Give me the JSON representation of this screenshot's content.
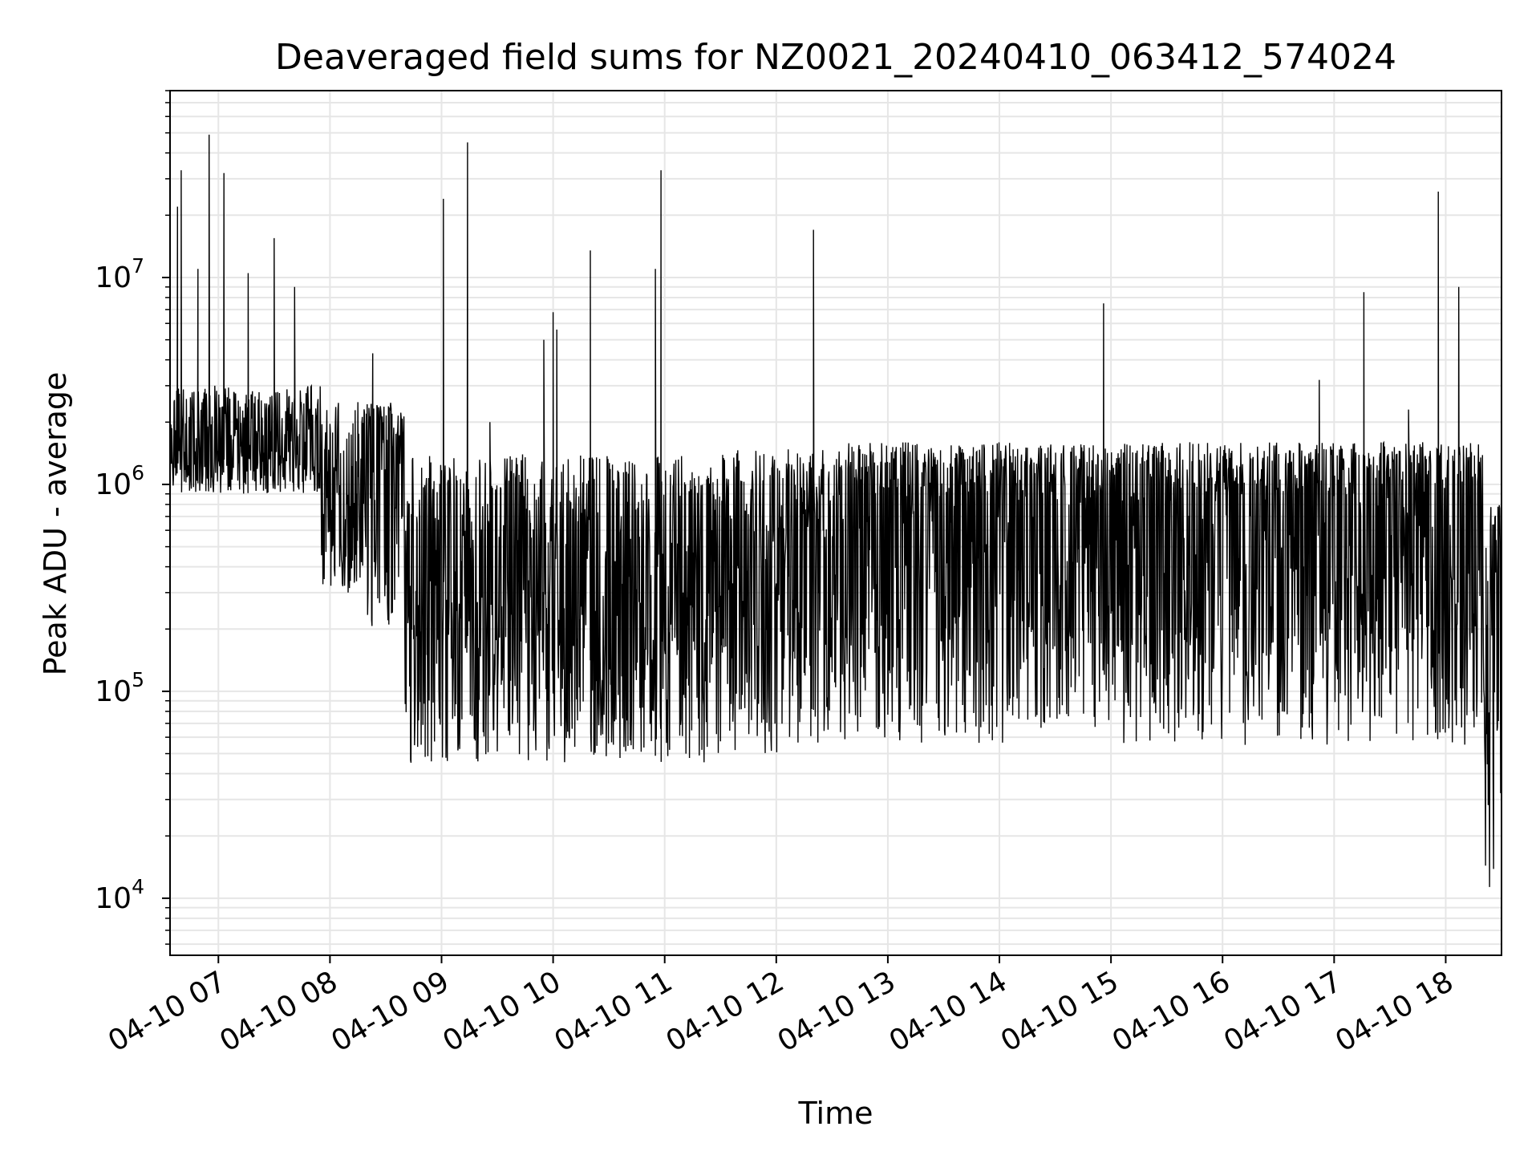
{
  "chart_data": {
    "type": "line",
    "title": "Deaveraged field sums for NZ0021_20240410_063412_574024",
    "xlabel": "Time",
    "ylabel": "Peak ADU - average",
    "yscale": "log",
    "grid": true,
    "legend": "none",
    "xlim": [
      "2024-04-10 06:34",
      "2024-04-10 18:30"
    ],
    "ylim": [
      5300,
      80000000
    ],
    "x_ticks": [
      "04-10 07",
      "04-10 08",
      "04-10 09",
      "04-10 10",
      "04-10 11",
      "04-10 12",
      "04-10 13",
      "04-10 14",
      "04-10 15",
      "04-10 16",
      "04-10 17",
      "04-10 18"
    ],
    "y_ticks": [
      {
        "value": 10000,
        "base": "10",
        "exp": "4"
      },
      {
        "value": 100000,
        "base": "10",
        "exp": "5"
      },
      {
        "value": 1000000,
        "base": "10",
        "exp": "6"
      },
      {
        "value": 10000000,
        "base": "10",
        "exp": "7"
      }
    ],
    "series": [
      {
        "color": "#000000",
        "segments": [
          {
            "start": "2024-04-10 06:34",
            "end": "2024-04-10 07:55",
            "base": 1500000,
            "low": 900000,
            "high": 3000000
          },
          {
            "start": "2024-04-10 07:55",
            "end": "2024-04-10 08:20",
            "base": 1000000,
            "low": 300000,
            "high": 2500000
          },
          {
            "start": "2024-04-10 08:20",
            "end": "2024-04-10 08:40",
            "base": 1500000,
            "low": 200000,
            "high": 2500000
          },
          {
            "start": "2024-04-10 08:40",
            "end": "2024-04-10 11:30",
            "base": 400000,
            "low": 45000,
            "high": 1400000
          },
          {
            "start": "2024-04-10 11:30",
            "end": "2024-04-10 12:30",
            "base": 500000,
            "low": 50000,
            "high": 1500000
          },
          {
            "start": "2024-04-10 12:30",
            "end": "2024-04-10 18:20",
            "base": 800000,
            "low": 55000,
            "high": 1600000
          },
          {
            "start": "2024-04-10 18:20",
            "end": "2024-04-10 18:30",
            "base": 300000,
            "low": 10000,
            "high": 800000
          }
        ],
        "spikes": [
          {
            "t": "2024-04-10 06:38",
            "y": 22000000
          },
          {
            "t": "2024-04-10 06:40",
            "y": 33000000
          },
          {
            "t": "2024-04-10 06:49",
            "y": 11000000
          },
          {
            "t": "2024-04-10 06:55",
            "y": 49000000
          },
          {
            "t": "2024-04-10 07:03",
            "y": 32000000
          },
          {
            "t": "2024-04-10 07:16",
            "y": 10500000
          },
          {
            "t": "2024-04-10 07:30",
            "y": 15500000
          },
          {
            "t": "2024-04-10 07:41",
            "y": 9000000
          },
          {
            "t": "2024-04-10 08:23",
            "y": 4300000
          },
          {
            "t": "2024-04-10 09:01",
            "y": 24000000
          },
          {
            "t": "2024-04-10 09:14",
            "y": 45000000
          },
          {
            "t": "2024-04-10 09:26",
            "y": 2000000
          },
          {
            "t": "2024-04-10 09:55",
            "y": 5000000
          },
          {
            "t": "2024-04-10 10:00",
            "y": 6800000
          },
          {
            "t": "2024-04-10 10:02",
            "y": 5600000
          },
          {
            "t": "2024-04-10 10:20",
            "y": 13500000
          },
          {
            "t": "2024-04-10 10:55",
            "y": 11000000
          },
          {
            "t": "2024-04-10 10:58",
            "y": 33000000
          },
          {
            "t": "2024-04-10 12:20",
            "y": 17000000
          },
          {
            "t": "2024-04-10 14:56",
            "y": 7500000
          },
          {
            "t": "2024-04-10 16:52",
            "y": 3200000
          },
          {
            "t": "2024-04-10 17:16",
            "y": 8500000
          },
          {
            "t": "2024-04-10 17:40",
            "y": 2300000
          },
          {
            "t": "2024-04-10 17:56",
            "y": 26000000
          },
          {
            "t": "2024-04-10 18:07",
            "y": 9000000
          }
        ]
      }
    ]
  }
}
